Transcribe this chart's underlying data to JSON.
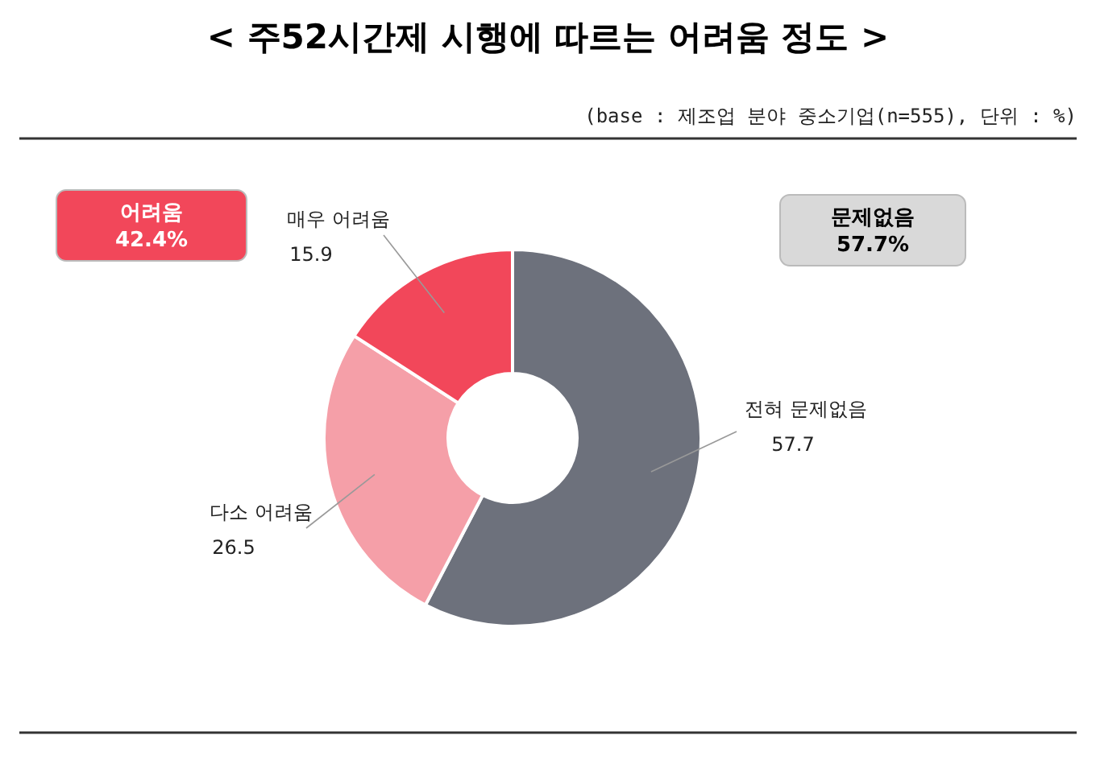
{
  "chart_data": {
    "type": "donut",
    "title": "< 주52시간제 시행에 따르는 어려움 정도 >",
    "subtitle": "(base : 제조업 분야 중소기업(n=555), 단위 : %)",
    "categories": [
      "전혀 문제없음",
      "다소 어려움",
      "매우 어려움"
    ],
    "values": [
      57.7,
      26.5,
      15.9
    ],
    "colors": [
      "#6d717c",
      "#f59fa8",
      "#f2475a"
    ],
    "data_labels": true,
    "annotations": [
      "어려움\n42.4%",
      "문제없음\n57.7%"
    ]
  }
}
